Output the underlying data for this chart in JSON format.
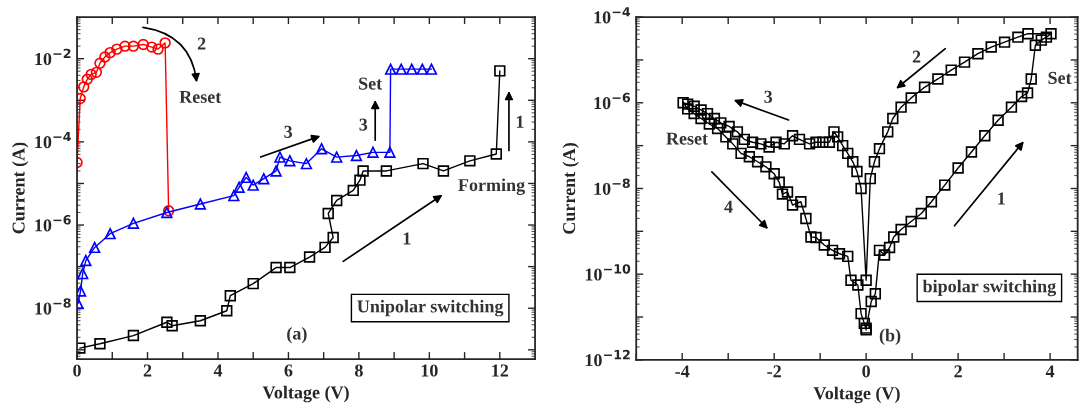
{
  "chart_data": [
    {
      "type": "line",
      "xlabel": "Voltage (V)",
      "ylabel": "Current (A)",
      "log": "y",
      "line_style": "solid",
      "xlim": [
        0,
        13
      ],
      "xticks": [
        0,
        {
          "value": 1,
          "label": null
        },
        2,
        {
          "value": 3,
          "label": null
        },
        4,
        {
          "value": 5,
          "label": null
        },
        6,
        {
          "value": 7,
          "label": null
        },
        8,
        {
          "value": 9,
          "label": null
        },
        10,
        {
          "value": 11,
          "label": null
        },
        12
      ],
      "ylim": [
        6e-10,
        0.1
      ],
      "yticks": [
        {
          "value": 1e-09,
          "label": null
        },
        {
          "value": 1e-08,
          "label": "10$^{−8}$"
        },
        {
          "value": 1e-07,
          "label": null
        },
        {
          "value": 1e-06,
          "label": "10$^{−6}$"
        },
        {
          "value": 1e-05,
          "label": null
        },
        {
          "value": 0.0001,
          "label": "10$^{−4}$"
        },
        {
          "value": 0.001,
          "label": null
        },
        {
          "value": 0.01,
          "label": "10$^{−2}$"
        }
      ],
      "series": [
        {
          "color": "#ff0000",
          "marker": "circle",
          "x": [
            0,
            0.09,
            0.19,
            0.29,
            0.4,
            0.55,
            0.65,
            0.79,
            0.94,
            1.13,
            1.36,
            1.6,
            1.88,
            2.12,
            2.3,
            2.5,
            2.6
          ],
          "values": [
            3.2e-05,
            0.0011,
            0.0021,
            0.0032,
            0.0042,
            0.0047,
            0.0078,
            0.011,
            0.014,
            0.017,
            0.02,
            0.02,
            0.022,
            0.019,
            0.017,
            0.024,
            2.2e-06
          ]
        },
        {
          "color": "#0000ff",
          "marker": "triangle",
          "x": [
            0.03,
            0.1,
            0.16,
            0.25,
            0.5,
            0.94,
            1.6,
            2.55,
            3.5,
            4.45,
            4.6,
            4.8,
            5.0,
            5.3,
            5.65,
            5.76,
            6.04,
            6.51,
            6.94,
            7.37,
            7.93,
            8.4,
            8.88,
            8.9,
            9.2,
            9.5,
            9.8,
            10.06
          ],
          "values": [
            1.3e-08,
            2.6e-08,
            6.8e-08,
            1.4e-07,
            2.9e-07,
            6.2e-07,
            1.1e-06,
            2e-06,
            3.2e-06,
            5.1e-06,
            8.1e-06,
            1.4e-05,
            9.1e-06,
            1.3e-05,
            2e-05,
            4.3e-05,
            3.5e-05,
            3e-05,
            6.8e-05,
            4.3e-05,
            4.7e-05,
            5.6e-05,
            5.6e-05,
            0.0056,
            0.0056,
            0.0056,
            0.0056,
            0.0056
          ]
        },
        {
          "color": "#000000",
          "marker": "square",
          "x": [
            0.08,
            0.65,
            1.6,
            2.55,
            2.7,
            3.5,
            4.25,
            4.35,
            5.0,
            5.65,
            6.04,
            6.6,
            7.04,
            7.27,
            7.13,
            7.37,
            7.84,
            8.03,
            8.12,
            8.78,
            9.82,
            10.4,
            11.15,
            11.9,
            12.0
          ],
          "values": [
            1.1e-09,
            1.4e-09,
            2.2e-09,
            4.6e-09,
            3.8e-09,
            5e-09,
            8.7e-09,
            2e-08,
            3.9e-08,
            9.5e-08,
            9.5e-08,
            1.7e-07,
            2.9e-07,
            5e-07,
            1.9e-06,
            3.9e-06,
            6.8e-06,
            1.2e-05,
            2e-05,
            2e-05,
            3e-05,
            2e-05,
            3.5e-05,
            5.1e-05,
            0.0051
          ]
        }
      ],
      "annotations": [
        "2",
        "Reset",
        "3",
        "Set",
        "3",
        "1",
        "Forming",
        "1",
        "(a)",
        "Unipolar switching"
      ]
    },
    {
      "type": "line",
      "xlabel": "Voltage (V)",
      "ylabel": "Current (A)",
      "log": "y",
      "line_style": "solid",
      "xlim": [
        -5,
        4.6
      ],
      "xticks": [
        {
          "value": -5,
          "label": null
        },
        -4,
        {
          "value": -3,
          "label": null
        },
        -2,
        {
          "value": -1,
          "label": null
        },
        0,
        {
          "value": 1,
          "label": null
        },
        2,
        {
          "value": 3,
          "label": null
        },
        4
      ],
      "ylim": [
        1e-12,
        0.0001
      ],
      "yticks": [
        {
          "value": 1e-12,
          "label": "10$^{−12}$"
        },
        {
          "value": 1e-11,
          "label": null
        },
        {
          "value": 1e-10,
          "label": "10$^{−10}$"
        },
        {
          "value": 1e-09,
          "label": null
        },
        {
          "value": 1e-08,
          "label": "10$^{−8}$"
        },
        {
          "value": 1e-07,
          "label": null
        },
        {
          "value": 1e-06,
          "label": "10$^{−6}$"
        },
        {
          "value": 1e-05,
          "label": null
        },
        {
          "value": 0.0001,
          "label": "10$^{−4}$"
        }
      ],
      "series": [
        {
          "color": "#000000",
          "marker": "square",
          "x": [
            0,
            0.11,
            0.2,
            0.29,
            0.4,
            0.51,
            0.6,
            0.76,
            0.98,
            1.2,
            1.42,
            1.71,
            2.0,
            2.29,
            2.58,
            2.87,
            3.16,
            3.38,
            3.51,
            3.59,
            3.68,
            3.81,
            3.92,
            4.02,
            3.52,
            3.3,
            3.01,
            2.72,
            2.43,
            2.14,
            1.85,
            1.56,
            1.27,
            0.98,
            0.76,
            0.58,
            0.47,
            0.29,
            0.18,
            0.09,
            0,
            -0.11,
            -0.2,
            -0.29,
            -0.4,
            -0.51,
            -0.62,
            -0.7,
            -0.8,
            -0.94,
            -1.09,
            -1.23,
            -1.45,
            -1.6,
            -1.78,
            -1.96,
            -2.11,
            -2.29,
            -2.47,
            -2.65,
            -2.8,
            -2.98,
            -3.16,
            -3.3,
            -3.45,
            -3.59,
            -3.74,
            -3.88,
            -3.98,
            -3.88,
            -3.74,
            -3.59,
            -3.41,
            -3.23,
            -3.05,
            -2.9,
            -2.72,
            -2.54,
            -2.36,
            -2.18,
            -2.0,
            -1.89,
            -1.82,
            -1.71,
            -1.6,
            -1.42,
            -1.31,
            -1.2,
            -1.09,
            -0.91,
            -0.73,
            -0.58,
            -0.4,
            -0.33,
            -0.18,
            -0.11,
            -0.04,
            0
          ],
          "values": [
            5.5e-12,
            2.3e-11,
            3.5e-11,
            3.6e-10,
            2.8e-10,
            4.2e-10,
            7.4e-10,
            1.1e-09,
            1.7e-09,
            2.6e-09,
            4.9e-09,
            1.2e-08,
            3e-08,
            7.1e-08,
            1.7e-07,
            3.9e-07,
            7.9e-07,
            1.4e-06,
            1.7e-06,
            3.6e-06,
            2.2e-05,
            2.9e-05,
            3.4e-05,
            4.1e-05,
            4.1e-05,
            3.4e-05,
            2.6e-05,
            2e-05,
            1.4e-05,
            8.9e-06,
            5.8e-06,
            3.6e-06,
            2.3e-06,
            1.3e-06,
            7.9e-07,
            4.3e-07,
            2.1e-07,
            8.5e-08,
            4.2e-08,
            1.7e-08,
            7.2e-11,
            1e-08,
            2.5e-08,
            4.2e-08,
            6.6e-08,
            1e-07,
            1.6e-07,
            2.1e-07,
            1.2e-07,
            1.2e-07,
            1.2e-07,
            1.1e-07,
            1.4e-07,
            1.7e-07,
            1.1e-07,
            1.2e-07,
            9.3e-08,
            1.1e-07,
            1.2e-07,
            1.4e-07,
            2.1e-07,
            2.8e-07,
            3.4e-07,
            4.3e-07,
            5.6e-07,
            6.8e-07,
            8.3e-07,
            9.3e-07,
            1e-06,
            7.2e-07,
            5.6e-07,
            4.3e-07,
            3.2e-07,
            2.5e-07,
            1.6e-07,
            1.1e-07,
            6.6e-08,
            5.5e-08,
            4.2e-08,
            3.2e-08,
            2.2e-08,
            1.4e-08,
            7.4e-09,
            8.3e-09,
            4.1e-09,
            4.9e-09,
            2e-09,
            7.4e-10,
            7.2e-10,
            4.8e-10,
            3.6e-10,
            3e-10,
            2.6e-10,
            7.2e-11,
            5.6e-11,
            1.2e-11,
            7.1e-12,
            5e-12
          ]
        }
      ],
      "annotations": [
        "2",
        "Set",
        "1",
        "3",
        "Reset",
        "4",
        "(b)",
        "bipolar switching"
      ]
    }
  ]
}
